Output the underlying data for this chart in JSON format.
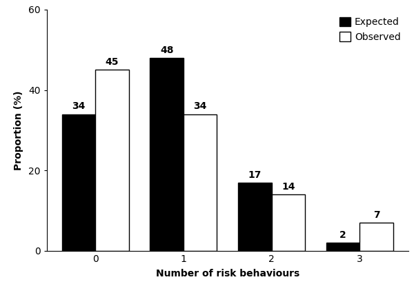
{
  "categories": [
    0,
    1,
    2,
    3
  ],
  "expected": [
    34,
    48,
    17,
    2
  ],
  "observed": [
    45,
    34,
    14,
    7
  ],
  "expected_color": "#000000",
  "observed_color": "#ffffff",
  "observed_edgecolor": "#000000",
  "bar_width": 0.38,
  "ylim": [
    0,
    60
  ],
  "yticks": [
    0,
    20,
    40,
    60
  ],
  "xlabel": "Number of risk behaviours",
  "ylabel": "Proportion (%)",
  "legend_expected": "Expected",
  "legend_observed": "Observed",
  "label_fontsize": 10,
  "tick_fontsize": 10,
  "annotation_fontsize": 10,
  "ylabel_fontsize": 10,
  "background_color": "#ffffff"
}
